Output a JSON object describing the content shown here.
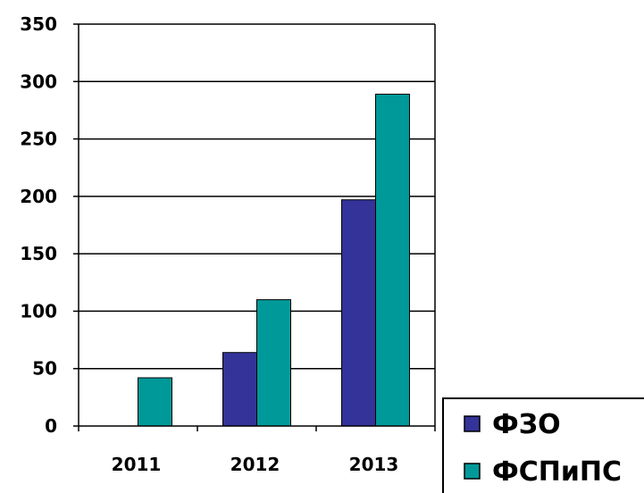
{
  "chart_data": {
    "type": "bar",
    "categories": [
      "2011",
      "2012",
      "2013"
    ],
    "series": [
      {
        "name": "ФЗО",
        "values": [
          0,
          64,
          197
        ],
        "color": "#333399"
      },
      {
        "name": "ФСПиПС",
        "values": [
          42,
          110,
          289
        ],
        "color": "#009999"
      }
    ],
    "ylim": [
      0,
      350
    ],
    "yticks": [
      0,
      50,
      100,
      150,
      200,
      250,
      300,
      350
    ],
    "ytick_labels": [
      "0",
      "50",
      "100",
      "150",
      "200",
      "250",
      "300",
      "350"
    ],
    "grid": true,
    "legend_position": "bottom-right"
  }
}
